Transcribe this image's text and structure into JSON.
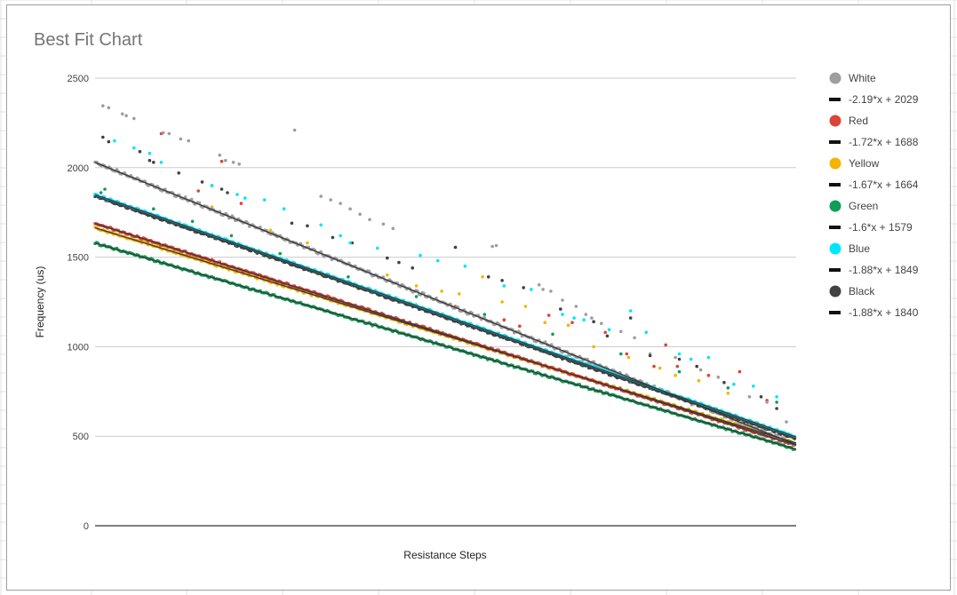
{
  "chart_data": {
    "type": "scatter",
    "title": "Best Fit Chart",
    "xlabel": "Resistance Steps",
    "ylabel": "Frequency (us)",
    "ylim": [
      0,
      2500
    ],
    "xlim": [
      0,
      720
    ],
    "yticks": [
      0,
      500,
      1000,
      1500,
      2000,
      2500
    ],
    "grid": true,
    "legend_position": "right",
    "series": [
      {
        "name": "White",
        "color": "#9e9e9e",
        "fit": {
          "label": "-2.19*x + 2029",
          "slope": -2.19,
          "intercept": 2029
        }
      },
      {
        "name": "Red",
        "color": "#db4437",
        "fit": {
          "label": "-1.72*x + 1688",
          "slope": -1.72,
          "intercept": 1688
        }
      },
      {
        "name": "Yellow",
        "color": "#f4b400",
        "fit": {
          "label": "-1.67*x + 1664",
          "slope": -1.67,
          "intercept": 1664
        }
      },
      {
        "name": "Green",
        "color": "#0f9d58",
        "fit": {
          "label": "-1.6*x + 1579",
          "slope": -1.6,
          "intercept": 1579
        }
      },
      {
        "name": "Blue",
        "color": "#00e5ff",
        "fit": {
          "label": "-1.88*x + 1849",
          "slope": -1.88,
          "intercept": 1849
        }
      },
      {
        "name": "Black",
        "color": "#424242",
        "fit": {
          "label": "-1.88*x + 1840",
          "slope": -1.88,
          "intercept": 1840
        }
      }
    ],
    "outliers": {
      "White": [
        [
          8,
          2345
        ],
        [
          14,
          2335
        ],
        [
          28,
          2300
        ],
        [
          32,
          2290
        ],
        [
          40,
          2275
        ],
        [
          70,
          2195
        ],
        [
          76,
          2190
        ],
        [
          88,
          2160
        ],
        [
          96,
          2150
        ],
        [
          128,
          2070
        ],
        [
          134,
          2040
        ],
        [
          142,
          2030
        ],
        [
          148,
          2020
        ],
        [
          205,
          2210
        ],
        [
          232,
          1840
        ],
        [
          242,
          1820
        ],
        [
          252,
          1800
        ],
        [
          262,
          1770
        ],
        [
          272,
          1740
        ],
        [
          282,
          1710
        ],
        [
          296,
          1685
        ],
        [
          306,
          1660
        ],
        [
          370,
          1555
        ],
        [
          408,
          1560
        ],
        [
          412,
          1565
        ],
        [
          456,
          1345
        ],
        [
          460,
          1320
        ],
        [
          468,
          1310
        ],
        [
          480,
          1260
        ],
        [
          494,
          1225
        ],
        [
          504,
          1180
        ],
        [
          510,
          1160
        ],
        [
          520,
          1130
        ],
        [
          540,
          1085
        ],
        [
          554,
          1050
        ],
        [
          570,
          960
        ],
        [
          596,
          940
        ],
        [
          622,
          870
        ],
        [
          640,
          830
        ],
        [
          672,
          720
        ],
        [
          690,
          690
        ],
        [
          710,
          580
        ]
      ],
      "Red": [
        [
          68,
          2190
        ],
        [
          106,
          1870
        ],
        [
          130,
          2035
        ],
        [
          150,
          1800
        ],
        [
          186,
          1620
        ],
        [
          260,
          1360
        ],
        [
          370,
          1225
        ],
        [
          420,
          1150
        ],
        [
          436,
          1115
        ],
        [
          466,
          1175
        ],
        [
          490,
          1135
        ],
        [
          524,
          1080
        ],
        [
          546,
          960
        ],
        [
          574,
          890
        ],
        [
          586,
          1010
        ],
        [
          598,
          890
        ],
        [
          630,
          840
        ],
        [
          662,
          860
        ],
        [
          690,
          700
        ]
      ],
      "Yellow": [
        [
          120,
          1780
        ],
        [
          180,
          1650
        ],
        [
          218,
          1580
        ],
        [
          300,
          1400
        ],
        [
          330,
          1340
        ],
        [
          356,
          1310
        ],
        [
          374,
          1295
        ],
        [
          398,
          1390
        ],
        [
          418,
          1250
        ],
        [
          442,
          1225
        ],
        [
          462,
          1135
        ],
        [
          486,
          1120
        ],
        [
          512,
          1000
        ],
        [
          548,
          940
        ],
        [
          580,
          880
        ],
        [
          596,
          840
        ],
        [
          620,
          810
        ],
        [
          650,
          740
        ]
      ],
      "Green": [
        [
          6,
          1860
        ],
        [
          10,
          1880
        ],
        [
          60,
          1770
        ],
        [
          100,
          1700
        ],
        [
          140,
          1620
        ],
        [
          190,
          1520
        ],
        [
          260,
          1390
        ],
        [
          330,
          1280
        ],
        [
          400,
          1180
        ],
        [
          470,
          1070
        ],
        [
          540,
          960
        ],
        [
          600,
          860
        ],
        [
          650,
          770
        ],
        [
          700,
          690
        ]
      ],
      "Blue": [
        [
          20,
          2150
        ],
        [
          40,
          2110
        ],
        [
          56,
          2080
        ],
        [
          68,
          2030
        ],
        [
          120,
          1900
        ],
        [
          146,
          1850
        ],
        [
          154,
          1830
        ],
        [
          174,
          1820
        ],
        [
          194,
          1770
        ],
        [
          232,
          1680
        ],
        [
          252,
          1620
        ],
        [
          262,
          1580
        ],
        [
          290,
          1550
        ],
        [
          334,
          1510
        ],
        [
          352,
          1480
        ],
        [
          380,
          1450
        ],
        [
          420,
          1340
        ],
        [
          448,
          1320
        ],
        [
          480,
          1180
        ],
        [
          492,
          1160
        ],
        [
          502,
          1150
        ],
        [
          528,
          1095
        ],
        [
          550,
          1200
        ],
        [
          566,
          1080
        ],
        [
          600,
          960
        ],
        [
          612,
          930
        ],
        [
          630,
          940
        ],
        [
          656,
          790
        ],
        [
          676,
          780
        ],
        [
          700,
          720
        ],
        [
          716,
          500
        ]
      ],
      "Black": [
        [
          8,
          2170
        ],
        [
          14,
          2145
        ],
        [
          46,
          2090
        ],
        [
          56,
          2040
        ],
        [
          60,
          2030
        ],
        [
          86,
          1970
        ],
        [
          110,
          1920
        ],
        [
          120,
          1900
        ],
        [
          130,
          1880
        ],
        [
          136,
          1860
        ],
        [
          202,
          1690
        ],
        [
          218,
          1675
        ],
        [
          244,
          1610
        ],
        [
          264,
          1580
        ],
        [
          300,
          1495
        ],
        [
          312,
          1470
        ],
        [
          326,
          1440
        ],
        [
          370,
          1555
        ],
        [
          404,
          1390
        ],
        [
          418,
          1370
        ],
        [
          440,
          1330
        ],
        [
          478,
          1210
        ],
        [
          512,
          1140
        ],
        [
          526,
          1060
        ],
        [
          550,
          1160
        ],
        [
          570,
          950
        ],
        [
          600,
          930
        ],
        [
          618,
          890
        ],
        [
          646,
          800
        ],
        [
          684,
          720
        ],
        [
          700,
          655
        ]
      ]
    },
    "band_noise": {
      "White": 10,
      "Red": 6,
      "Yellow": 7,
      "Green": 6,
      "Blue": 6,
      "Black": 6
    }
  }
}
